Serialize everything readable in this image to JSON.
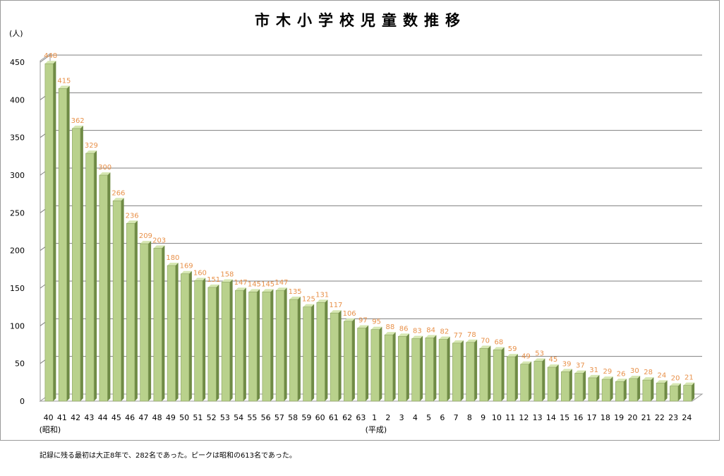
{
  "chart_data": {
    "type": "bar",
    "title": "市木小学校児童数推移",
    "ylabel": "(人)",
    "xlabel": "",
    "ylim": [
      0,
      450
    ],
    "yticks": [
      0,
      50,
      100,
      150,
      200,
      250,
      300,
      350,
      400,
      450
    ],
    "grid": true,
    "categories": [
      "40",
      "41",
      "42",
      "43",
      "44",
      "45",
      "46",
      "47",
      "48",
      "49",
      "50",
      "51",
      "52",
      "53",
      "54",
      "55",
      "56",
      "57",
      "58",
      "59",
      "60",
      "61",
      "62",
      "63",
      "1",
      "2",
      "3",
      "4",
      "5",
      "6",
      "7",
      "8",
      "9",
      "10",
      "11",
      "12",
      "13",
      "14",
      "15",
      "16",
      "17",
      "18",
      "19",
      "20",
      "21",
      "22",
      "23",
      "24"
    ],
    "values": [
      448,
      415,
      362,
      329,
      300,
      266,
      236,
      209,
      203,
      180,
      169,
      160,
      151,
      158,
      147,
      145,
      145,
      147,
      135,
      125,
      131,
      117,
      106,
      97,
      95,
      88,
      86,
      83,
      84,
      82,
      77,
      78,
      70,
      68,
      59,
      49,
      53,
      45,
      39,
      37,
      31,
      29,
      26,
      30,
      28,
      24,
      20,
      21
    ],
    "era_labels": [
      {
        "text": "(昭和)",
        "category_index": 0
      },
      {
        "text": "(平成)",
        "category_index": 24
      }
    ]
  },
  "colors": {
    "bar_front": "#b9d18c",
    "bar_side": "#6f8b45",
    "bar_top": "#d6e7b2",
    "data_label": "#e8914a",
    "grid": "#7f7f7f"
  },
  "note": "記録に残る最初は大正8年で、282名であった。ピークは昭和の613名であった。"
}
